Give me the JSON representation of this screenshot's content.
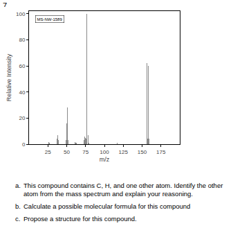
{
  "question_number": "7.",
  "chart_data": {
    "type": "bar",
    "x": [
      26,
      27,
      37,
      38,
      39,
      49,
      50,
      51,
      52,
      61,
      62,
      63,
      73,
      74,
      75,
      76,
      77,
      78,
      79,
      117,
      156,
      157,
      158,
      159
    ],
    "values": [
      1.5,
      1,
      4,
      7,
      3,
      3,
      16,
      28,
      3,
      1.5,
      1,
      1,
      3,
      6,
      5,
      4,
      100,
      7,
      1,
      1,
      62,
      4,
      60,
      4
    ],
    "color": "#8a8a8a",
    "xlim": [
      0,
      200
    ],
    "ylim": [
      0,
      102
    ],
    "xticks": [
      25,
      50,
      75,
      100,
      125,
      150,
      175
    ],
    "yticks": [
      0,
      20,
      40,
      60,
      80,
      100
    ],
    "xlabel": "m/z",
    "ylabel": "Relative Intensity",
    "annotations": [
      "MS-NW-1589"
    ],
    "grid": false
  },
  "questions": [
    {
      "label": "a.",
      "text": "This compound contains C, H, and one other atom.  Identify the other atom from the mass spectrum and explain your reasoning."
    },
    {
      "label": "b.",
      "text": "Calculate a possible molecular formula for this compound"
    },
    {
      "label": "c.",
      "text": "Propose a structure for this compound."
    }
  ]
}
